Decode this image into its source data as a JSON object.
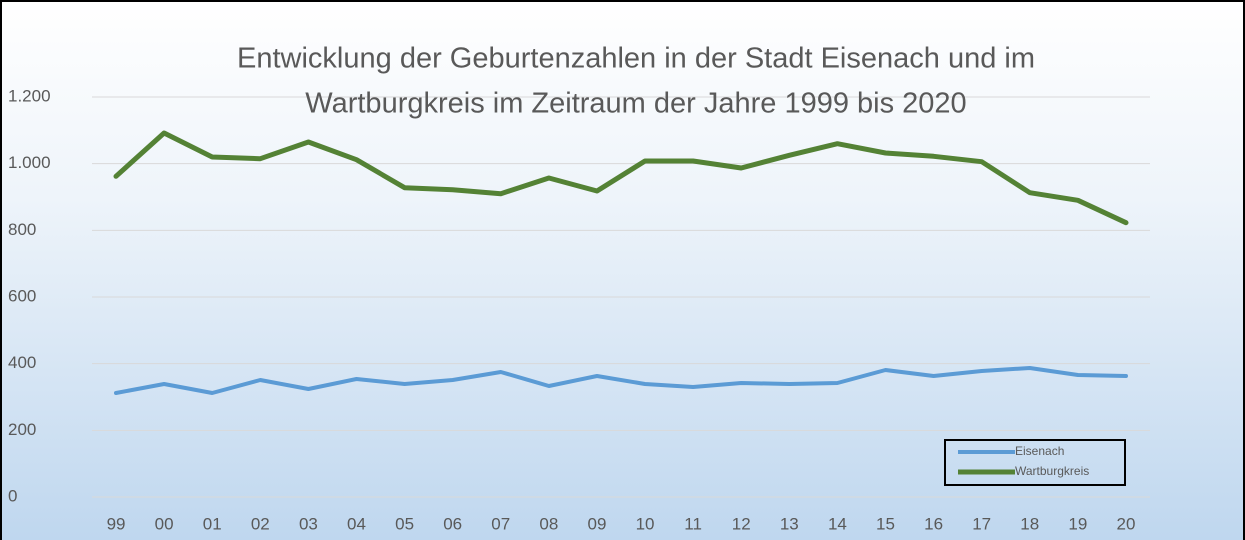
{
  "chart_data": {
    "type": "line",
    "title": "Entwicklung der Geburtenzahlen in der Stadt Eisenach und im",
    "subtitle": "Wartburgkreis im Zeitraum der Jahre 1999 bis 2020",
    "categories": [
      "99",
      "00",
      "01",
      "02",
      "03",
      "04",
      "05",
      "06",
      "07",
      "08",
      "09",
      "10",
      "11",
      "12",
      "13",
      "14",
      "15",
      "16",
      "17",
      "18",
      "19",
      "20"
    ],
    "series": [
      {
        "name": "Eisenach",
        "color": "#5b9bd5",
        "values": [
          312,
          339,
          312,
          351,
          324,
          354,
          339,
          351,
          375,
          333,
          363,
          339,
          330,
          342,
          339,
          342,
          381,
          363,
          378,
          387,
          366,
          363
        ]
      },
      {
        "name": "Wartburgkreis",
        "color": "#548235",
        "values": [
          962,
          1092,
          1020,
          1015,
          1065,
          1012,
          928,
          922,
          910,
          957,
          918,
          1008,
          1008,
          987,
          1025,
          1060,
          1032,
          1022,
          1006,
          913,
          890,
          823
        ]
      }
    ],
    "ylim": [
      0,
      1200
    ],
    "yticks": [
      0,
      200,
      400,
      600,
      800,
      {
        "value": 1000,
        "label": "1.000"
      },
      {
        "value": 1200,
        "label": "1.200"
      }
    ],
    "grid": true,
    "legend": "lower right"
  }
}
